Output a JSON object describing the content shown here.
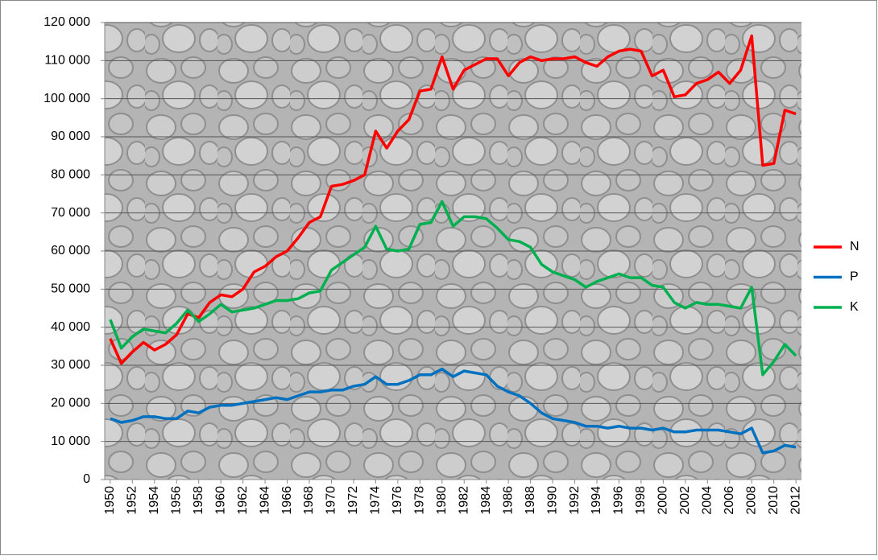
{
  "chart_data": {
    "type": "line",
    "x": [
      1950,
      1951,
      1952,
      1953,
      1954,
      1955,
      1956,
      1957,
      1958,
      1959,
      1960,
      1961,
      1962,
      1963,
      1964,
      1965,
      1966,
      1967,
      1968,
      1969,
      1970,
      1971,
      1972,
      1973,
      1974,
      1975,
      1976,
      1977,
      1978,
      1979,
      1980,
      1981,
      1982,
      1983,
      1984,
      1985,
      1986,
      1987,
      1988,
      1989,
      1990,
      1991,
      1992,
      1993,
      1994,
      1995,
      1996,
      1997,
      1998,
      1999,
      2000,
      2001,
      2002,
      2003,
      2004,
      2005,
      2006,
      2007,
      2008,
      2009,
      2010,
      2011,
      2012
    ],
    "xlim": [
      1949.5,
      2012.5
    ],
    "xticks": [
      1950,
      1952,
      1954,
      1956,
      1958,
      1960,
      1962,
      1964,
      1966,
      1968,
      1970,
      1972,
      1974,
      1976,
      1978,
      1980,
      1982,
      1984,
      1986,
      1988,
      1990,
      1992,
      1994,
      1996,
      1998,
      2000,
      2002,
      2004,
      2006,
      2008,
      2010,
      2012
    ],
    "ylim": [
      0,
      120000
    ],
    "yticks": [
      0,
      {
        "value": 10000,
        "label": "10 000"
      },
      {
        "value": 20000,
        "label": "20 000"
      },
      {
        "value": 30000,
        "label": "30 000"
      },
      {
        "value": 40000,
        "label": "40 000"
      },
      {
        "value": 50000,
        "label": "50 000"
      },
      {
        "value": 60000,
        "label": "60 000"
      },
      {
        "value": 70000,
        "label": "70 000"
      },
      {
        "value": 80000,
        "label": "80 000"
      },
      {
        "value": 90000,
        "label": "90 000"
      },
      {
        "value": 100000,
        "label": "100 000"
      },
      {
        "value": 110000,
        "label": "110 000"
      },
      {
        "value": 120000,
        "label": "120 000"
      }
    ],
    "grid": true,
    "legend": "right",
    "series": [
      {
        "name": "N",
        "color": "#ff0000",
        "values": [
          37000,
          30500,
          33500,
          36000,
          34000,
          35500,
          38000,
          43500,
          42500,
          46500,
          48500,
          48000,
          50000,
          54500,
          56000,
          58500,
          60000,
          63500,
          67500,
          69000,
          77000,
          77500,
          78500,
          80000,
          91500,
          87000,
          91500,
          94500,
          102000,
          102500,
          111000,
          102500,
          107500,
          109000,
          110500,
          110500,
          106000,
          109500,
          111000,
          110000,
          110500,
          110500,
          111000,
          109500,
          108500,
          111000,
          112500,
          113000,
          112500,
          106000,
          107500,
          100500,
          101000,
          104000,
          105000,
          107000,
          104000,
          107500,
          116500,
          82500,
          83000,
          97000,
          96000
        ]
      },
      {
        "name": "P",
        "color": "#0070c0",
        "values": [
          16000,
          15000,
          15500,
          16500,
          16500,
          16000,
          16000,
          18000,
          17500,
          19000,
          19500,
          19500,
          20000,
          20500,
          21000,
          21500,
          21000,
          22000,
          23000,
          23000,
          23500,
          23500,
          24500,
          25000,
          27000,
          25000,
          25000,
          26000,
          27500,
          27500,
          29000,
          27000,
          28500,
          28000,
          27500,
          24500,
          23000,
          22000,
          20000,
          17500,
          16000,
          15500,
          15000,
          14000,
          14000,
          13500,
          14000,
          13500,
          13500,
          13000,
          13500,
          12500,
          12500,
          13000,
          13000,
          13000,
          12500,
          12000,
          13500,
          7000,
          7500,
          9000,
          8500
        ]
      },
      {
        "name": "K",
        "color": "#00b050",
        "values": [
          42000,
          34500,
          37500,
          39500,
          39000,
          38500,
          41000,
          44500,
          41500,
          43500,
          46000,
          44000,
          44500,
          45000,
          46000,
          47000,
          47000,
          47500,
          49000,
          49500,
          55000,
          57000,
          59000,
          61000,
          66500,
          60500,
          60000,
          60500,
          67000,
          67500,
          73000,
          66500,
          69000,
          69000,
          68500,
          66000,
          63000,
          62500,
          61000,
          56500,
          54500,
          53500,
          52500,
          50500,
          52000,
          53000,
          54000,
          53000,
          53000,
          51000,
          50500,
          46500,
          45000,
          46500,
          46000,
          46000,
          45500,
          45000,
          50500,
          27500,
          31000,
          35500,
          32500
        ]
      }
    ]
  }
}
